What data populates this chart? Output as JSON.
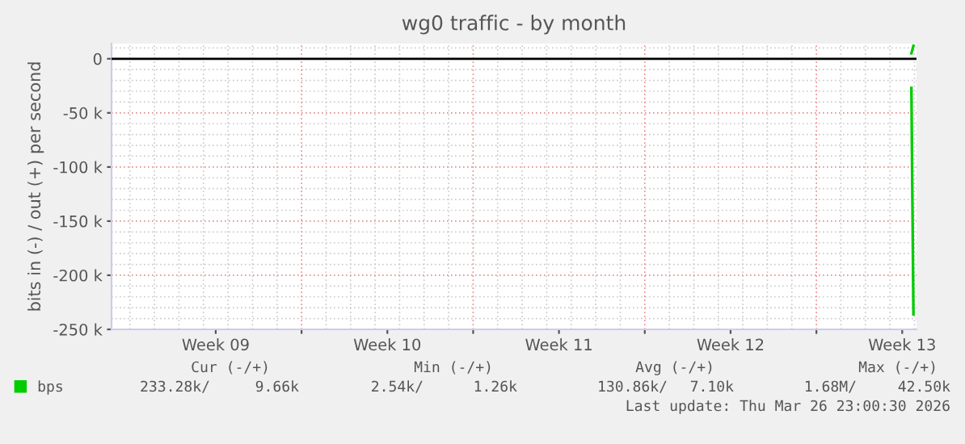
{
  "chart_data": {
    "type": "line",
    "title": "wg0 traffic - by month",
    "ylabel": "bits in (-) / out (+) per second",
    "series": [
      {
        "name": "bps",
        "color": "#00cc00",
        "x": [
          "2026-03-26T21:00",
          "2026-03-26T23:00"
        ],
        "values": [
          -27000,
          -236000
        ]
      },
      {
        "color": "#00cc00",
        "x": [
          "2026-03-26T21:00",
          "2026-03-26T23:00"
        ],
        "values": [
          5000,
          12000
        ]
      }
    ],
    "xlim": [
      "2026-02-22T06:00",
      "2026-03-27T02:00"
    ],
    "xticks": [
      {
        "value": "2026-02-26T12:00",
        "label": "Week 09"
      },
      {
        "value": "2026-03-02",
        "label": null
      },
      {
        "value": "2026-03-05T12:00",
        "label": "Week 10"
      },
      {
        "value": "2026-03-09",
        "label": null
      },
      {
        "value": "2026-03-12T12:00",
        "label": "Week 11"
      },
      {
        "value": "2026-03-16",
        "label": null
      },
      {
        "value": "2026-03-19T12:00",
        "label": "Week 12"
      },
      {
        "value": "2026-03-23",
        "label": null
      },
      {
        "value": "2026-03-26T12:00",
        "label": "Week 13"
      }
    ],
    "ylim": [
      -250000,
      14000
    ],
    "yticks": [
      {
        "value": -250000,
        "label": "-250 k"
      },
      {
        "value": -200000,
        "label": "-200 k"
      },
      {
        "value": -150000,
        "label": "-150 k"
      },
      {
        "value": -100000,
        "label": "-100 k"
      },
      {
        "value": -50000,
        "label": "-50 k"
      },
      0
    ],
    "ref_lines": [
      {
        "axis": "y",
        "value": 0,
        "color": "#000000"
      }
    ],
    "grid": true,
    "legend": "bottom",
    "annotations": [
      "Cur (-/+)",
      "Min (-/+)",
      "Avg (-/+)",
      "Max (-/+)",
      "233.28k/",
      "9.66k",
      "2.54k/",
      "1.26k",
      "130.86k/",
      "7.10k",
      "1.68M/",
      "42.50k",
      "Last update: Thu Mar 26 23:00:30 2026"
    ]
  }
}
